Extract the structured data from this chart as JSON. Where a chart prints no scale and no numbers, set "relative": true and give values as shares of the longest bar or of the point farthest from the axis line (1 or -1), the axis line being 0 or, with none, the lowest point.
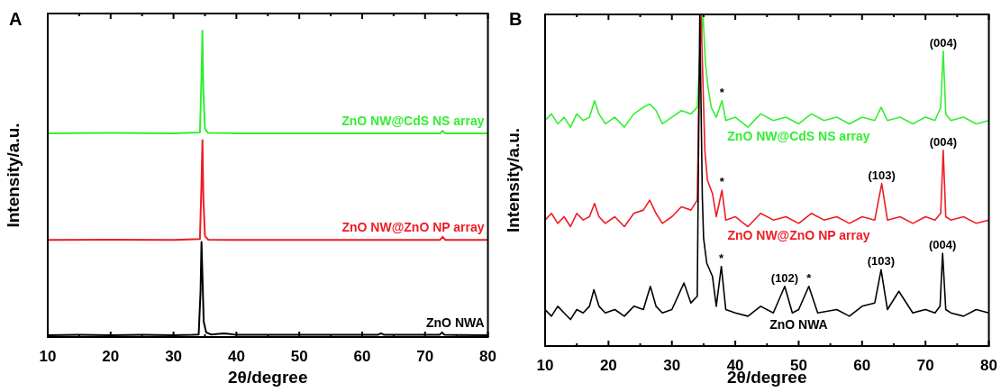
{
  "chart_data": [
    {
      "type": "line",
      "title": "A",
      "xlabel": "2θ/degree",
      "ylabel": "Intensity/a.u.",
      "relative": true,
      "legend": false,
      "marker": "none",
      "line_style": "solid",
      "tick_labels": "x",
      "xlim": [
        10,
        80
      ],
      "xticks": [
        10,
        {
          "value": 15,
          "label": null
        },
        20,
        {
          "value": 25,
          "label": null
        },
        30,
        {
          "value": 35,
          "label": null
        },
        40,
        {
          "value": 45,
          "label": null
        },
        50,
        {
          "value": 55,
          "label": null
        },
        60,
        {
          "value": 65,
          "label": null
        },
        70,
        {
          "value": 75,
          "label": null
        },
        80
      ],
      "series": [
        {
          "name": "ZnO NWA",
          "color": "#000000",
          "x": [
            10,
            15,
            20,
            25,
            30,
            33,
            34.0,
            34.3,
            34.45,
            34.6,
            34.8,
            35.2,
            36,
            38,
            40,
            50,
            62.5,
            63,
            63.5,
            72.3,
            72.7,
            73.1,
            80
          ],
          "values": [
            0.006,
            0.007,
            0.006,
            0.007,
            0.006,
            0.007,
            0.008,
            0.15,
            0.31,
            0.2,
            0.05,
            0.015,
            0.008,
            0.012,
            0.007,
            0.007,
            0.007,
            0.012,
            0.007,
            0.007,
            0.015,
            0.007,
            0.006
          ]
        },
        {
          "name": "ZnO NW@ZnO NP array",
          "color": "#ee1c24",
          "x": [
            10,
            20,
            30,
            34.2,
            34.45,
            34.6,
            34.75,
            35.0,
            35.5,
            40,
            60,
            72.4,
            72.8,
            73.2,
            80
          ],
          "values": [
            0.317,
            0.318,
            0.317,
            0.32,
            0.5,
            0.643,
            0.45,
            0.33,
            0.318,
            0.317,
            0.317,
            0.317,
            0.327,
            0.317,
            0.317
          ]
        },
        {
          "name": "ZnO NW@CdS NS array",
          "color": "#33ee33",
          "x": [
            10,
            20,
            30,
            34.2,
            34.45,
            34.6,
            34.75,
            35.0,
            35.5,
            40,
            60,
            72.4,
            72.8,
            73.2,
            80
          ],
          "values": [
            0.665,
            0.666,
            0.665,
            0.668,
            0.85,
            1,
            0.8,
            0.68,
            0.666,
            0.665,
            0.665,
            0.665,
            0.673,
            0.665,
            0.665
          ]
        }
      ]
    },
    {
      "type": "line",
      "title": "B",
      "xlabel": "2θ/degree",
      "ylabel": "Intensity/a.u.",
      "relative": true,
      "legend": false,
      "marker": "none",
      "line_style": "solid",
      "tick_labels": "x",
      "xlim": [
        10,
        80
      ],
      "xticks": [
        10,
        {
          "value": 15,
          "label": null
        },
        20,
        {
          "value": 25,
          "label": null
        },
        30,
        {
          "value": 35,
          "label": null
        },
        40,
        {
          "value": 45,
          "label": null
        },
        50,
        {
          "value": 55,
          "label": null
        },
        60,
        {
          "value": 65,
          "label": null
        },
        70,
        {
          "value": 75,
          "label": null
        },
        80
      ],
      "annotations": [
        {
          "text": "(004)",
          "x": 72.8,
          "y": 0.89
        },
        {
          "text": "*",
          "x": 37.9,
          "y": 0.74
        },
        {
          "text": "(004)",
          "x": 72.8,
          "y": 0.59
        },
        {
          "text": "(103)",
          "x": 63.1,
          "y": 0.49
        },
        {
          "text": "*",
          "x": 37.9,
          "y": 0.47
        },
        {
          "text": "(004)",
          "x": 72.7,
          "y": 0.28
        },
        {
          "text": "(103)",
          "x": 63.0,
          "y": 0.23
        },
        {
          "text": "(102)",
          "x": 47.8,
          "y": 0.18
        },
        {
          "text": "*",
          "x": 37.8,
          "y": 0.24
        },
        {
          "text": "*",
          "x": 51.6,
          "y": 0.18
        }
      ],
      "series": [
        {
          "name": "ZnO NWA",
          "color": "#000000",
          "x": [
            10,
            11,
            12,
            13,
            14,
            15,
            16,
            17,
            17.7,
            18.5,
            19.5,
            21,
            22.5,
            24,
            25.5,
            26.6,
            27.5,
            28.5,
            30,
            31.9,
            33,
            34.0,
            34.4,
            34.8,
            35.0,
            35.5,
            36.4,
            37,
            37.8,
            38.5,
            40,
            42,
            44,
            46,
            47.8,
            49,
            50,
            51.6,
            53,
            56,
            58,
            60,
            62,
            63.0,
            64,
            65.8,
            68,
            70,
            71.5,
            72.3,
            72.7,
            73.2,
            74,
            76,
            78,
            80
          ],
          "values": [
            0.11,
            0.09,
            0.12,
            0.1,
            0.08,
            0.11,
            0.1,
            0.12,
            0.17,
            0.12,
            0.1,
            0.11,
            0.09,
            0.12,
            0.11,
            0.18,
            0.12,
            0.1,
            0.11,
            0.19,
            0.13,
            0.15,
            1,
            0.45,
            0.325,
            0.25,
            0.21,
            0.12,
            0.24,
            0.11,
            0.1,
            0.09,
            0.12,
            0.1,
            0.18,
            0.1,
            0.11,
            0.18,
            0.1,
            0.11,
            0.09,
            0.12,
            0.13,
            0.23,
            0.11,
            0.165,
            0.1,
            0.11,
            0.1,
            0.12,
            0.28,
            0.11,
            0.1,
            0.09,
            0.11,
            0.1
          ]
        },
        {
          "name": "ZnO NW@ZnO NP array",
          "color": "#ee1c24",
          "x": [
            10,
            11,
            12,
            13,
            14,
            15,
            16,
            17,
            17.8,
            18.5,
            19.5,
            21,
            22.5,
            24,
            25.5,
            26.5,
            27.5,
            28.5,
            30,
            31.5,
            33,
            34,
            34.3,
            34.6,
            35.2,
            35.6,
            36.4,
            37,
            37.9,
            38.5,
            40,
            42,
            44,
            46,
            48,
            50,
            52,
            54,
            56,
            58,
            60,
            62,
            63.1,
            64,
            66,
            68,
            70,
            71.5,
            72.4,
            72.8,
            73.2,
            74,
            76,
            78,
            80
          ],
          "values": [
            0.38,
            0.4,
            0.37,
            0.39,
            0.36,
            0.4,
            0.38,
            0.39,
            0.43,
            0.39,
            0.37,
            0.39,
            0.36,
            0.4,
            0.41,
            0.44,
            0.4,
            0.37,
            0.39,
            0.42,
            0.41,
            0.44,
            0.8,
            1,
            0.59,
            0.5,
            0.46,
            0.39,
            0.47,
            0.38,
            0.39,
            0.36,
            0.4,
            0.38,
            0.39,
            0.37,
            0.4,
            0.38,
            0.39,
            0.37,
            0.39,
            0.38,
            0.49,
            0.38,
            0.39,
            0.37,
            0.39,
            0.38,
            0.4,
            0.59,
            0.39,
            0.38,
            0.39,
            0.37,
            0.38
          ]
        },
        {
          "name": "ZnO NW@CdS NS array",
          "color": "#33ee33",
          "x": [
            10,
            11,
            12,
            13,
            14,
            15,
            16,
            17,
            17.8,
            18.5,
            19.5,
            21,
            22.5,
            24,
            25.5,
            26.5,
            27.5,
            28.5,
            30,
            31.5,
            33,
            34,
            34.5,
            34.9,
            35.3,
            35.7,
            36.2,
            37,
            37.9,
            38.5,
            40,
            42,
            44,
            46,
            48,
            50,
            52,
            54,
            56,
            58,
            60,
            62,
            63,
            64,
            66,
            68,
            70,
            71.5,
            72.4,
            72.8,
            73.2,
            74,
            76,
            78,
            80
          ],
          "values": [
            0.68,
            0.7,
            0.67,
            0.69,
            0.66,
            0.7,
            0.68,
            0.69,
            0.74,
            0.7,
            0.67,
            0.69,
            0.66,
            0.7,
            0.72,
            0.73,
            0.71,
            0.67,
            0.69,
            0.71,
            0.7,
            0.72,
            0.9,
            1,
            0.85,
            0.78,
            0.72,
            0.69,
            0.74,
            0.68,
            0.69,
            0.66,
            0.7,
            0.68,
            0.69,
            0.67,
            0.7,
            0.68,
            0.69,
            0.67,
            0.69,
            0.68,
            0.72,
            0.68,
            0.69,
            0.67,
            0.69,
            0.68,
            0.72,
            0.89,
            0.7,
            0.68,
            0.69,
            0.67,
            0.68
          ]
        }
      ]
    }
  ]
}
